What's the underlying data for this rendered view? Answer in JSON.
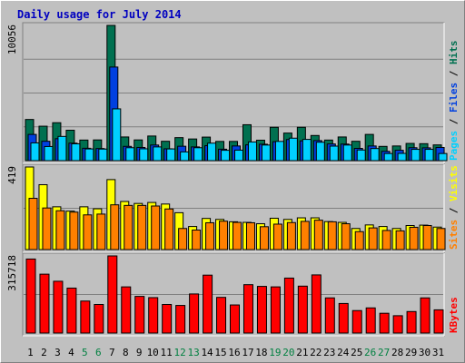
{
  "colors": {
    "background": "#c0c0c0",
    "hits": "#007050",
    "files": "#0040e0",
    "pages": "#00d0ff",
    "visits": "#ffff00",
    "sites": "#ff8000",
    "kbytes": "#ff0000",
    "title": "#0000c0",
    "weekend_day": "#008040",
    "weekday": "#000000"
  },
  "chart_data": {
    "type": "bar",
    "title": "Daily usage for July 2014",
    "categories": [
      "1",
      "2",
      "3",
      "4",
      "5",
      "6",
      "7",
      "8",
      "9",
      "10",
      "11",
      "12",
      "13",
      "14",
      "15",
      "16",
      "17",
      "18",
      "19",
      "20",
      "21",
      "22",
      "23",
      "24",
      "25",
      "26",
      "27",
      "28",
      "29",
      "30",
      "31"
    ],
    "weekend_days": [
      "5",
      "6",
      "12",
      "13",
      "19",
      "20",
      "26",
      "27"
    ],
    "panels": [
      {
        "id": "hits-files-pages",
        "max_label": "10056",
        "ylim": [
          0,
          10056
        ],
        "legend": [
          {
            "label": "Pages",
            "color_key": "pages"
          },
          {
            "label": "Files",
            "color_key": "files"
          },
          {
            "label": "Hits",
            "color_key": "hits"
          }
        ],
        "separator": " / ",
        "series": [
          {
            "name": "Hits",
            "color_key": "hits",
            "values": [
              3060,
              2560,
              2820,
              2260,
              1530,
              1540,
              10056,
              1760,
              1540,
              1830,
              1440,
              1710,
              1610,
              1750,
              1430,
              1430,
              2670,
              1520,
              2480,
              2050,
              2480,
              1870,
              1530,
              1760,
              1440,
              1950,
              1060,
              1090,
              1280,
              1260,
              1170
            ]
          },
          {
            "name": "Files",
            "color_key": "files",
            "values": [
              1950,
              1440,
              1630,
              1300,
              920,
              900,
              6960,
              1060,
              980,
              1160,
              880,
              1070,
              1020,
              1110,
              850,
              1090,
              1170,
              1220,
              1410,
              1570,
              1470,
              1490,
              1240,
              1230,
              910,
              1090,
              690,
              770,
              960,
              950,
              980
            ]
          },
          {
            "name": "Pages",
            "color_key": "pages",
            "values": [
              1320,
              1050,
              1800,
              1250,
              870,
              860,
              3850,
              960,
              880,
              1020,
              870,
              650,
              960,
              1300,
              770,
              780,
              1390,
              1160,
              1430,
              1670,
              1580,
              1370,
              1080,
              1160,
              790,
              900,
              530,
              540,
              840,
              840,
              530
            ]
          }
        ]
      },
      {
        "id": "visits-sites",
        "max_label": "419",
        "ylim": [
          0,
          419
        ],
        "legend": [
          {
            "label": "Sites",
            "color_key": "sites"
          },
          {
            "label": "Visits",
            "color_key": "visits"
          }
        ],
        "separator": " / ",
        "series": [
          {
            "name": "Visits",
            "color_key": "visits",
            "values": [
              419,
              329,
              217,
              195,
              217,
              207,
              355,
              244,
              234,
              239,
              231,
              187,
              117,
              158,
              153,
              141,
              138,
              131,
              159,
              153,
              161,
              161,
              142,
              138,
              107,
              125,
              117,
              107,
              122,
              124,
              114
            ]
          },
          {
            "name": "Sites",
            "color_key": "sites",
            "values": [
              260,
              211,
              197,
              190,
              176,
              180,
              227,
              224,
              224,
              221,
              206,
              107,
              99,
              136,
              144,
              138,
              136,
              116,
              129,
              137,
              143,
              149,
              141,
              131,
              91,
              110,
              97,
              95,
              113,
              122,
              107
            ]
          }
        ]
      },
      {
        "id": "kbytes",
        "max_label": "315718",
        "ylim": [
          0,
          315718
        ],
        "legend": [
          {
            "label": "KBytes",
            "color_key": "kbytes"
          }
        ],
        "separator": "",
        "series": [
          {
            "name": "KBytes",
            "color_key": "kbytes",
            "values": [
              303000,
              241000,
              212000,
              184000,
              131000,
              117000,
              315718,
              189000,
              150000,
              145000,
              117000,
              113000,
              160000,
              237000,
              146000,
              115000,
              198000,
              191000,
              189000,
              225000,
              192000,
              238000,
              144000,
              121000,
              92000,
              103000,
              81000,
              71000,
              88000,
              144000,
              95000
            ]
          }
        ]
      }
    ]
  }
}
